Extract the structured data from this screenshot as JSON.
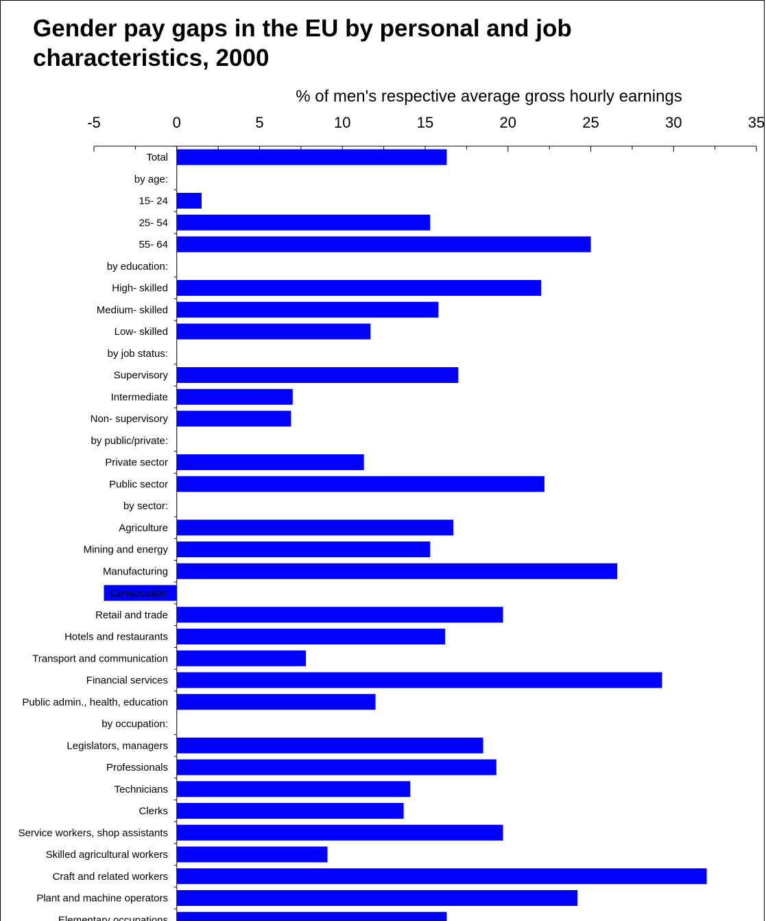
{
  "chart_data": {
    "type": "bar",
    "orientation": "horizontal",
    "title": "Gender pay gaps in the EU by personal and job characteristics, 2000",
    "title_lines": [
      "Gender pay gaps in the EU by personal and job",
      "characteristics, 2000"
    ],
    "xlabel": "% of men's respective average gross hourly earnings",
    "ylabel": "",
    "xlim": [
      -5,
      35
    ],
    "xticks": [
      "-5",
      "0",
      "5",
      "10",
      "15",
      "20",
      "25",
      "30",
      "35"
    ],
    "bar_color": "#0000ff",
    "legend": "none",
    "grid": false,
    "categories": [
      "Total",
      "by age:",
      "15- 24",
      "25- 54",
      "55- 64",
      "by education:",
      "High- skilled",
      "Medium- skilled",
      "Low- skilled",
      "by job status:",
      "Supervisory",
      "Intermediate",
      "Non- supervisory",
      "by public/private:",
      "Private sector",
      "Public sector",
      "by sector:",
      "Agriculture",
      "Mining and energy",
      "Manufacturing",
      "Construction",
      "Retail and trade",
      "Hotels and restaurants",
      "Transport and communication",
      "Financial services",
      "Public admin., health, education",
      "by occupation:",
      "Legislators, managers",
      "Professionals",
      "Technicians",
      "Clerks",
      "Service workers, shop assistants",
      "Skilled agricultural workers",
      "Craft and related workers",
      "Plant and machine operators",
      "Elementary occupations"
    ],
    "values": [
      16.3,
      null,
      1.5,
      15.3,
      25.0,
      null,
      22.0,
      15.8,
      11.7,
      null,
      17.0,
      7.0,
      6.9,
      null,
      11.3,
      22.2,
      null,
      16.7,
      15.3,
      26.6,
      -4.4,
      19.7,
      16.2,
      7.8,
      29.3,
      12.0,
      null,
      18.5,
      19.3,
      14.1,
      13.7,
      19.7,
      9.1,
      32.0,
      24.2,
      16.3
    ]
  }
}
